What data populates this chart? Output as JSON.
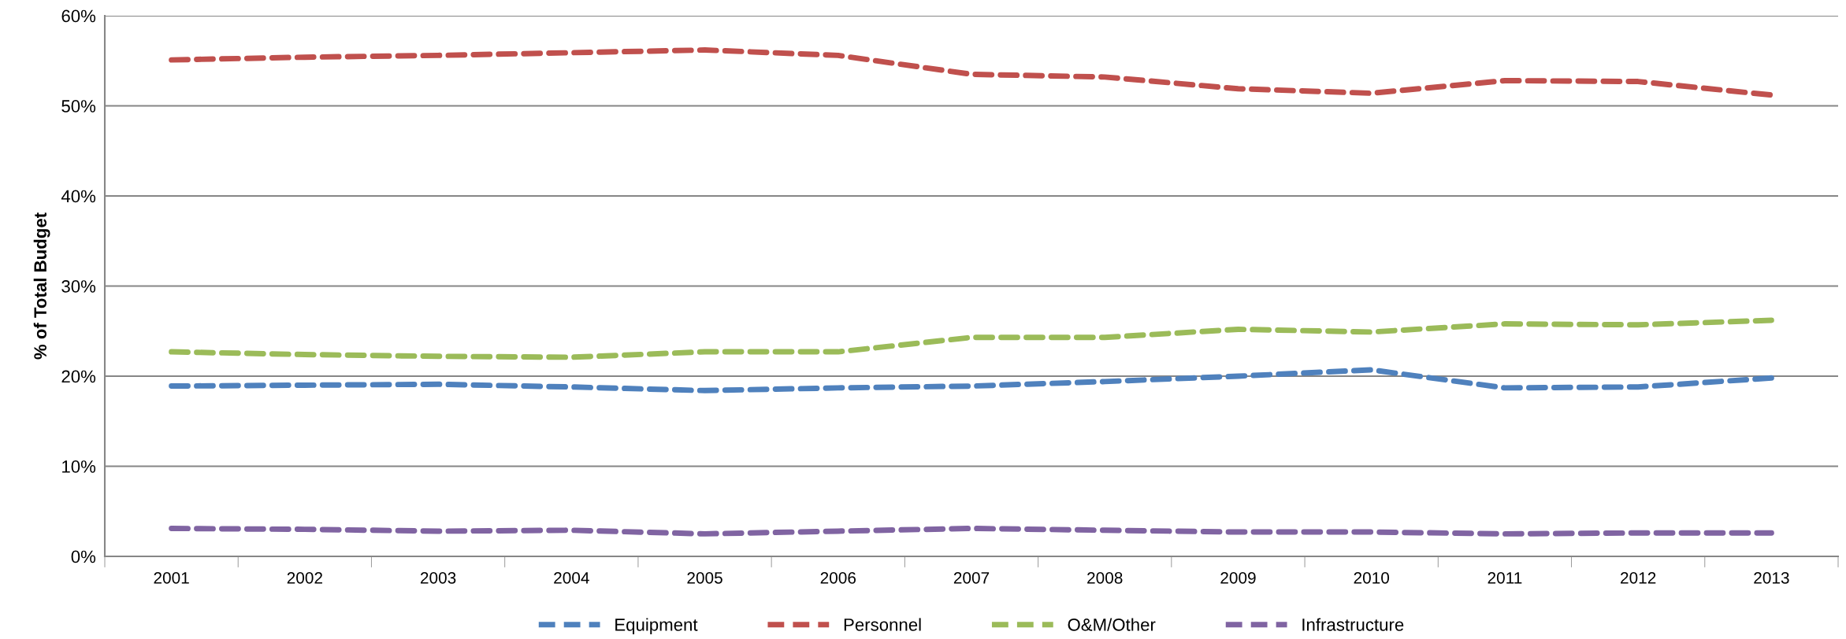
{
  "chart_data": {
    "type": "line",
    "ylabel": "% of Total Budget",
    "categories": [
      "2001",
      "2002",
      "2003",
      "2004",
      "2005",
      "2006",
      "2007",
      "2008",
      "2009",
      "2010",
      "2011",
      "2012",
      "2013"
    ],
    "series": [
      {
        "name": "Equipment",
        "color": "#4f81bd",
        "values": [
          18.9,
          19.0,
          19.1,
          18.8,
          18.4,
          18.7,
          18.9,
          19.4,
          20.0,
          20.7,
          18.7,
          18.8,
          19.8
        ]
      },
      {
        "name": "Personnel",
        "color": "#c0504d",
        "values": [
          55.1,
          55.4,
          55.6,
          55.9,
          56.2,
          55.6,
          53.5,
          53.2,
          51.9,
          51.4,
          52.8,
          52.7,
          51.2
        ]
      },
      {
        "name": "O&M/Other",
        "color": "#9bbb59",
        "values": [
          22.7,
          22.4,
          22.2,
          22.1,
          22.7,
          22.7,
          24.3,
          24.3,
          25.2,
          24.9,
          25.8,
          25.7,
          26.2
        ]
      },
      {
        "name": "Infrastructure",
        "color": "#8064a2",
        "values": [
          3.1,
          3.0,
          2.8,
          2.9,
          2.5,
          2.8,
          3.1,
          2.9,
          2.7,
          2.7,
          2.5,
          2.6,
          2.6
        ]
      }
    ],
    "ylim": [
      0,
      60
    ],
    "yticks": [
      {
        "value": 0,
        "label": "0%"
      },
      {
        "value": 10,
        "label": "10%"
      },
      {
        "value": 20,
        "label": "20%"
      },
      {
        "value": 30,
        "label": "30%"
      },
      {
        "value": 40,
        "label": "40%"
      },
      {
        "value": 50,
        "label": "50%"
      },
      {
        "value": 60,
        "label": "60%"
      }
    ],
    "grid": "y",
    "legend": "bottom",
    "line_style": "dashed",
    "marker": "none"
  }
}
